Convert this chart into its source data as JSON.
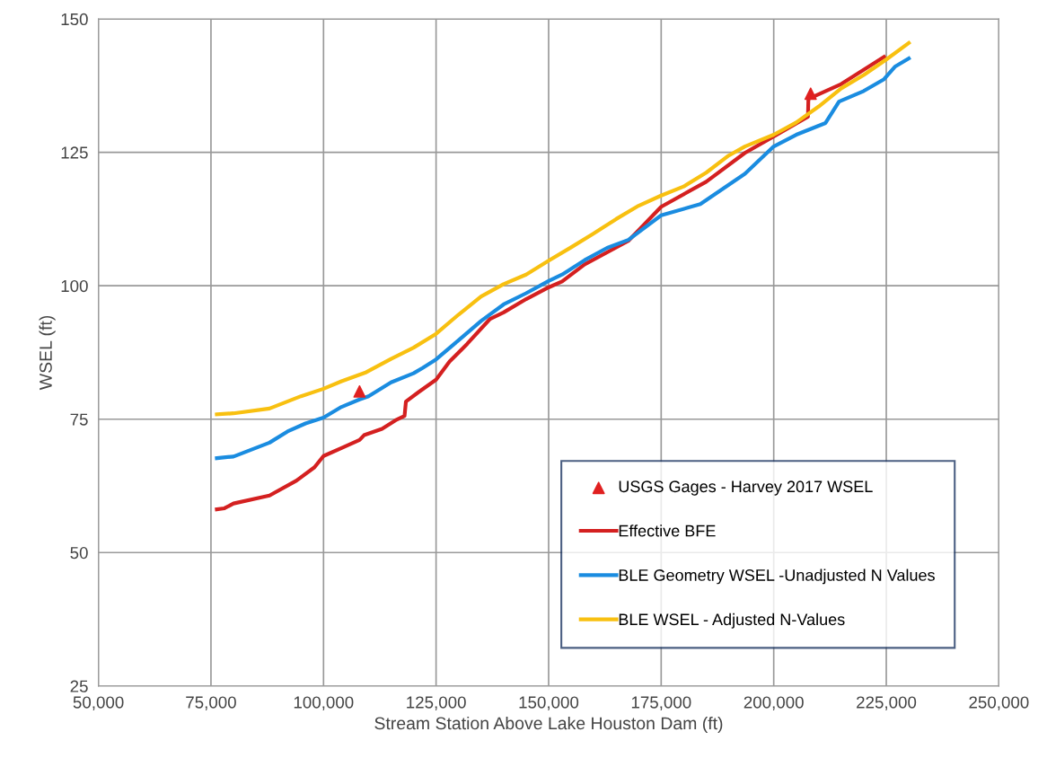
{
  "chart_data": {
    "type": "line",
    "xlabel": "Stream Station Above Lake Houston Dam (ft)",
    "ylabel": "WSEL (ft)",
    "xlim": [
      50000,
      250000
    ],
    "xticks": [
      {
        "value": 50000,
        "label": "50,000"
      },
      {
        "value": 75000,
        "label": "75,000"
      },
      {
        "value": 100000,
        "label": "100,000"
      },
      {
        "value": 125000,
        "label": "125,000"
      },
      {
        "value": 150000,
        "label": "150,000"
      },
      {
        "value": 175000,
        "label": "175,000"
      },
      {
        "value": 200000,
        "label": "200,000"
      },
      {
        "value": 225000,
        "label": "225,000"
      },
      {
        "value": 250000,
        "label": "250,000"
      }
    ],
    "ylim": [
      25,
      150
    ],
    "yticks": [
      25,
      50,
      75,
      100,
      125,
      150
    ],
    "grid": true,
    "legend": "bottom right",
    "series": [
      {
        "name": "USGS Gages - Harvey 2017 WSEL",
        "type": "scatter",
        "marker": "triangle",
        "color": "#e02020",
        "x": [
          108000,
          208200
        ],
        "values": [
          80.2,
          136.0
        ]
      },
      {
        "name": "Effective BFE",
        "color": "#d42020",
        "x": [
          76300,
          78000,
          80000,
          88000,
          94000,
          98000,
          100000,
          104000,
          108000,
          109000,
          113000,
          116000,
          118000,
          118300,
          121000,
          125000,
          128000,
          131900,
          137000,
          140000,
          145000,
          150000,
          153000,
          158000,
          167700,
          175000,
          185000,
          193600,
          200000,
          207600,
          207700,
          215000,
          224500
        ],
        "values": [
          58.1,
          58.3,
          59.2,
          60.7,
          63.5,
          66.0,
          68.1,
          69.6,
          71.1,
          72.0,
          73.2,
          74.8,
          75.6,
          78.3,
          80.0,
          82.4,
          85.8,
          89.1,
          93.8,
          95.0,
          97.5,
          99.7,
          100.8,
          104.0,
          108.4,
          114.8,
          119.5,
          124.9,
          128.0,
          131.7,
          135.0,
          137.8,
          142.9
        ]
      },
      {
        "name": "BLE Geometry WSEL -Unadjusted N Values",
        "color": "#1a8ce0",
        "x": [
          76300,
          80000,
          88000,
          92000,
          96000,
          100000,
          104000,
          108000,
          110000,
          115000,
          120000,
          122000,
          125000,
          130000,
          135000,
          140000,
          145000,
          150000,
          153000,
          158000,
          163000,
          167700,
          175000,
          183700,
          193600,
          200000,
          205000,
          211500,
          214500,
          220000,
          224500,
          227000,
          230000
        ],
        "values": [
          67.7,
          68.0,
          70.6,
          72.7,
          74.2,
          75.3,
          77.3,
          78.7,
          79.3,
          81.9,
          83.6,
          84.6,
          86.2,
          89.8,
          93.4,
          96.5,
          98.6,
          100.9,
          102.1,
          104.8,
          107.1,
          108.6,
          113.2,
          115.3,
          121.0,
          126.1,
          128.3,
          130.5,
          134.5,
          136.5,
          138.7,
          141.1,
          142.6
        ]
      },
      {
        "name": "BLE WSEL - Adjusted N-Values",
        "color": "#f8c010",
        "x": [
          76300,
          80000,
          88000,
          95000,
          100000,
          104000,
          109500,
          115000,
          120000,
          125000,
          130000,
          135000,
          140000,
          145000,
          150000,
          155000,
          160000,
          165000,
          170000,
          175000,
          180000,
          185000,
          190000,
          193600,
          200000,
          205000,
          210000,
          215000,
          220000,
          225000,
          230000
        ],
        "values": [
          75.9,
          76.1,
          77.0,
          79.3,
          80.7,
          82.1,
          83.8,
          86.3,
          88.4,
          91.0,
          94.6,
          98.0,
          100.3,
          102.1,
          104.7,
          107.2,
          109.8,
          112.5,
          115.0,
          116.9,
          118.6,
          121.2,
          124.4,
          126.1,
          128.3,
          130.6,
          133.6,
          137.0,
          139.5,
          142.4,
          145.5
        ]
      }
    ]
  }
}
